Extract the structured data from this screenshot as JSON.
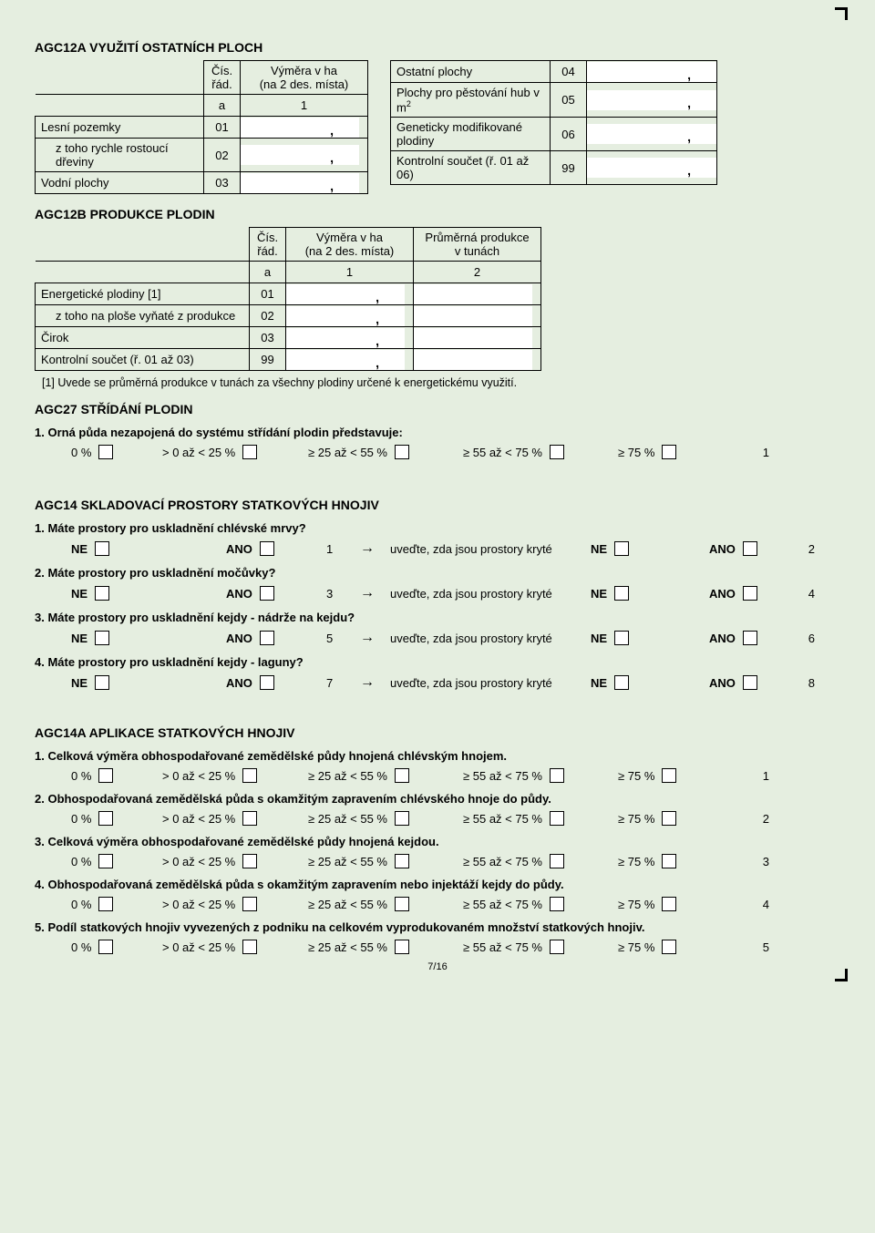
{
  "agc12a": {
    "title": "AGC12A VYUŽITÍ OSTATNÍCH PLOCH",
    "hdr_cis": "Čís.\nřád.",
    "hdr_vymera": "Výměra v ha\n(na 2 des. místa)",
    "hdr_a": "a",
    "hdr_1": "1",
    "left_rows": [
      {
        "label": "Lesní pozemky",
        "code": "01",
        "indent": false
      },
      {
        "label": "z toho rychle rostoucí dřeviny",
        "code": "02",
        "indent": true
      },
      {
        "label": "Vodní plochy",
        "code": "03",
        "indent": false
      }
    ],
    "right_rows": [
      {
        "label": "Ostatní plochy",
        "code": "04"
      },
      {
        "label": "Plochy pro pěstování hub v m²",
        "code": "05",
        "sup": true
      },
      {
        "label": "Geneticky modifikované plodiny",
        "code": "06"
      },
      {
        "label": "Kontrolní součet (ř. 01 až 06)",
        "code": "99"
      }
    ]
  },
  "agc12b": {
    "title": "AGC12B PRODUKCE PLODIN",
    "hdr_cis": "Čís.\nřád.",
    "hdr_vymera": "Výměra v ha\n(na 2 des. místa)",
    "hdr_prod": "Průměrná produkce\nv tunách",
    "hdr_a": "a",
    "hdr_1": "1",
    "hdr_2": "2",
    "rows": [
      {
        "label": "Energetické plodiny [1]",
        "code": "01",
        "indent": false
      },
      {
        "label": "z toho na ploše vyňaté z produkce",
        "code": "02",
        "indent": true
      },
      {
        "label": "Čirok",
        "code": "03",
        "indent": false
      },
      {
        "label": "Kontrolní součet (ř. 01 až 03)",
        "code": "99",
        "indent": false
      }
    ],
    "footnote": "[1] Uvede se průměrná produkce v tunách za všechny plodiny určené k energetickému využití."
  },
  "agc27": {
    "title": "AGC27 STŘÍDÁNÍ PLODIN",
    "q1": "1. Orná půda nezapojená do systému střídání plodin představuje:",
    "opts": [
      "0 %",
      "> 0 až < 25 %",
      "≥ 25 až < 55 %",
      "≥ 55 až < 75 %",
      "≥ 75 %"
    ],
    "end": "1"
  },
  "agc14": {
    "title": "AGC14 SKLADOVACÍ PROSTORY STATKOVÝCH HNOJIV",
    "ne": "NE",
    "ano": "ANO",
    "arrow": "→",
    "covered": "uveďte, zda jsou prostory kryté",
    "qs": [
      {
        "q": "1. Máte prostory pro uskladnění chlévské mrvy?",
        "n1": "1",
        "n2": "2"
      },
      {
        "q": "2. Máte prostory pro uskladnění močůvky?",
        "n1": "3",
        "n2": "4"
      },
      {
        "q": "3. Máte prostory pro uskladnění kejdy - nádrže na kejdu?",
        "n1": "5",
        "n2": "6"
      },
      {
        "q": "4. Máte prostory pro uskladnění kejdy - laguny?",
        "n1": "7",
        "n2": "8"
      }
    ]
  },
  "agc14a": {
    "title": "AGC14A  APLIKACE STATKOVÝCH HNOJIV",
    "opts": [
      "0 %",
      "> 0 až < 25 %",
      "≥ 25 až < 55 %",
      "≥ 55 až < 75 %",
      "≥ 75 %"
    ],
    "qs": [
      {
        "q": "1. Celková výměra obhospodařované zemědělské půdy hnojená chlévským hnojem.",
        "n": "1"
      },
      {
        "q": "2. Obhospodařovaná zemědělská půda s okamžitým zapravením chlévského hnoje do půdy.",
        "n": "2"
      },
      {
        "q": "3. Celková výměra obhospodařované zemědělské půdy hnojená kejdou.",
        "n": "3"
      },
      {
        "q": "4. Obhospodařovaná zemědělská půda s okamžitým zapravením nebo injektáží kejdy do půdy.",
        "n": "4"
      },
      {
        "q": "5. Podíl statkových hnojiv vyvezených z podniku na celkovém vyprodukovaném množství statkových hnojiv.",
        "n": "5"
      }
    ]
  },
  "page_num": "7/16"
}
